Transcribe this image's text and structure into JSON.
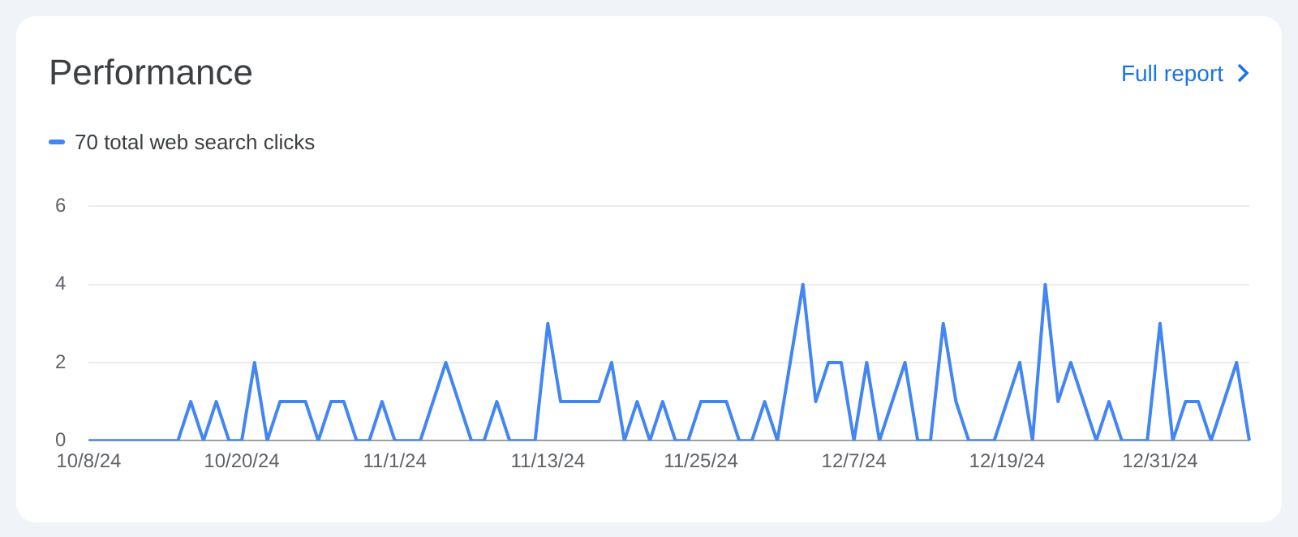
{
  "chart_data": {
    "type": "line",
    "title": "Performance",
    "annotations": [
      "Full report"
    ],
    "legend": "top left",
    "grid": "y",
    "marker": "none",
    "line_style": "solid",
    "categories": [
      "10/8/24",
      null,
      null,
      null,
      null,
      null,
      null,
      null,
      null,
      null,
      null,
      null,
      "10/20/24",
      null,
      null,
      null,
      null,
      null,
      null,
      null,
      null,
      null,
      null,
      null,
      "11/1/24",
      null,
      null,
      null,
      null,
      null,
      null,
      null,
      null,
      null,
      null,
      null,
      "11/13/24",
      null,
      null,
      null,
      null,
      null,
      null,
      null,
      null,
      null,
      null,
      null,
      "11/25/24",
      null,
      null,
      null,
      null,
      null,
      null,
      null,
      null,
      null,
      null,
      null,
      "12/7/24",
      null,
      null,
      null,
      null,
      null,
      null,
      null,
      null,
      null,
      null,
      null,
      "12/19/24",
      null,
      null,
      null,
      null,
      null,
      null,
      null,
      null,
      null,
      null,
      null,
      "12/31/24",
      null,
      null,
      null,
      null,
      null,
      null,
      null
    ],
    "series": [
      {
        "name": "70 total web search clicks",
        "color": "#4285f4",
        "values": [
          0,
          0,
          0,
          0,
          0,
          0,
          0,
          0,
          1,
          0,
          1,
          0,
          0,
          2,
          0,
          1,
          1,
          1,
          0,
          1,
          1,
          0,
          0,
          1,
          0,
          0,
          0,
          1,
          2,
          1,
          0,
          0,
          1,
          0,
          0,
          0,
          3,
          1,
          1,
          1,
          1,
          2,
          0,
          1,
          0,
          1,
          0,
          0,
          1,
          1,
          1,
          0,
          0,
          1,
          0,
          2,
          4,
          1,
          2,
          2,
          0,
          2,
          0,
          1,
          2,
          0,
          0,
          3,
          1,
          0,
          0,
          0,
          1,
          2,
          0,
          4,
          1,
          2,
          1,
          0,
          1,
          0,
          0,
          0,
          3,
          0,
          1,
          1,
          0,
          1,
          2,
          0
        ]
      }
    ],
    "ylim": [
      0,
      6
    ],
    "yticks": [
      0,
      2,
      4,
      6
    ]
  }
}
